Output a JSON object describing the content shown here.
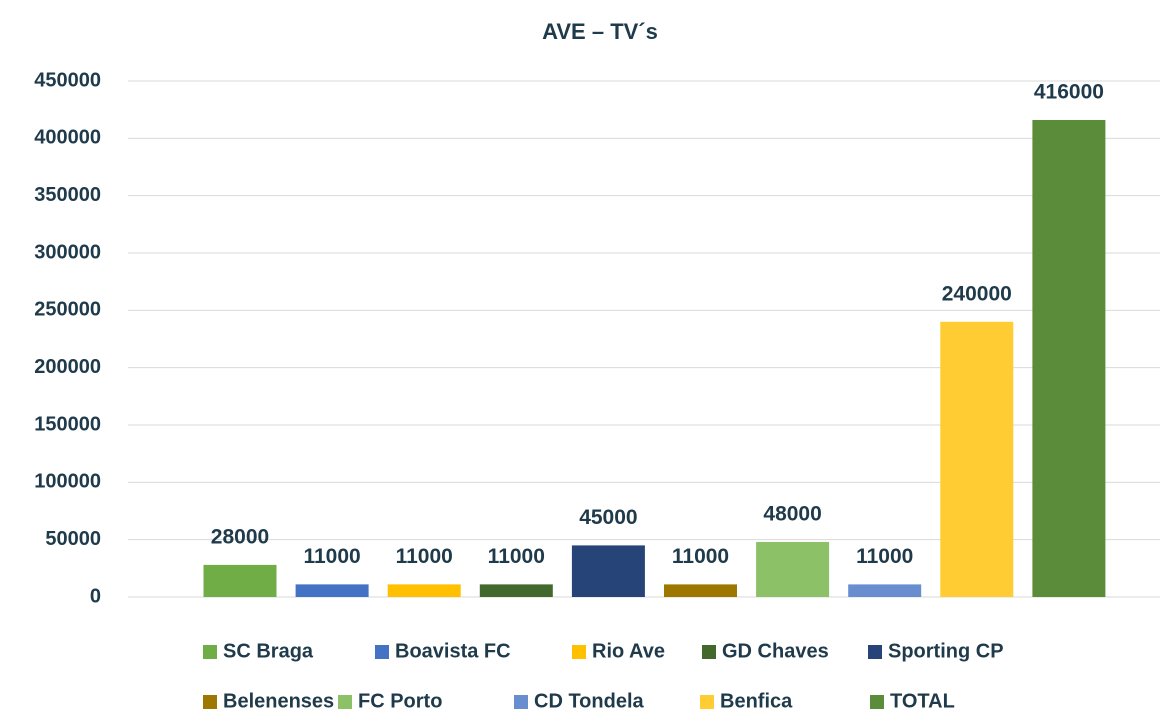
{
  "chart_data": {
    "type": "bar",
    "title": "AVE – TV´s",
    "series": [
      {
        "name": "SC Braga",
        "color": "#70ad47",
        "values": [
          28000
        ]
      },
      {
        "name": "Boavista FC",
        "color": "#4472c4",
        "values": [
          11000
        ]
      },
      {
        "name": "Rio Ave",
        "color": "#ffc000",
        "values": [
          11000
        ]
      },
      {
        "name": "GD Chaves",
        "color": "#43682b",
        "values": [
          11000
        ]
      },
      {
        "name": "Sporting CP",
        "color": "#264478",
        "values": [
          45000
        ]
      },
      {
        "name": "Belenenses",
        "color": "#9e7700",
        "values": [
          11000
        ]
      },
      {
        "name": "FC Porto",
        "color": "#8cc168",
        "values": [
          48000
        ]
      },
      {
        "name": "CD Tondela",
        "color": "#698ed0",
        "values": [
          11000
        ]
      },
      {
        "name": "Benfica",
        "color": "#ffcd33",
        "values": [
          240000
        ]
      },
      {
        "name": "TOTAL",
        "color": "#5b8c3a",
        "values": [
          416000
        ]
      }
    ],
    "ylim": [
      0,
      450000
    ],
    "yticks": [
      0,
      50000,
      100000,
      150000,
      200000,
      250000,
      300000,
      350000,
      400000,
      450000
    ],
    "grid": true,
    "legend": "bottom"
  }
}
